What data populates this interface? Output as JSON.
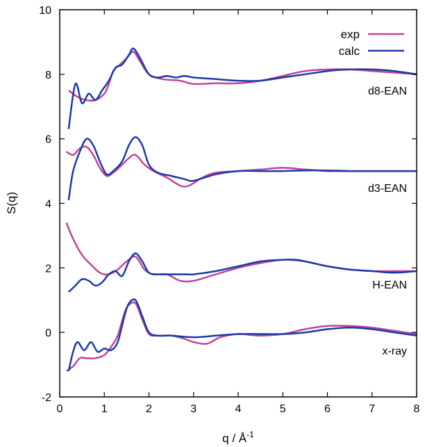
{
  "chart_data": {
    "type": "line",
    "title": "",
    "xlabel": "q / Å",
    "xlabel_sup": "-1",
    "ylabel": "S(q)",
    "xlim": [
      0,
      8
    ],
    "ylim": [
      -2,
      10
    ],
    "xticks": [
      "0",
      "1",
      "2",
      "3",
      "4",
      "5",
      "6",
      "7",
      "8"
    ],
    "yticks": [
      "-2",
      "0",
      "2",
      "4",
      "6",
      "8",
      "10"
    ],
    "grid": false,
    "legend_position": "top-right",
    "legend": [
      {
        "name": "exp",
        "color": "#c0449a"
      },
      {
        "name": "calc",
        "color": "#1a3aa8"
      }
    ],
    "annotations": [
      "d8-EAN",
      "d3-EAN",
      "H-EAN",
      "x-ray"
    ],
    "series": [
      {
        "dataset": "d8-EAN",
        "kind": "exp",
        "x": [
          0.2,
          0.4,
          0.6,
          0.8,
          1.0,
          1.1,
          1.2,
          1.35,
          1.5,
          1.65,
          1.8,
          2.0,
          2.3,
          2.7,
          3.0,
          3.5,
          4.0,
          4.5,
          5.0,
          5.5,
          6.0,
          6.5,
          7.0,
          7.5,
          8.0
        ],
        "y": [
          7.5,
          7.3,
          7.2,
          7.2,
          7.4,
          7.7,
          8.1,
          8.3,
          8.5,
          8.7,
          8.4,
          8.0,
          7.85,
          7.8,
          7.7,
          7.72,
          7.72,
          7.8,
          7.95,
          8.1,
          8.15,
          8.15,
          8.1,
          8.05,
          8.0
        ]
      },
      {
        "dataset": "d8-EAN",
        "kind": "calc",
        "x": [
          0.2,
          0.35,
          0.5,
          0.65,
          0.8,
          0.95,
          1.1,
          1.25,
          1.4,
          1.55,
          1.65,
          1.8,
          2.0,
          2.2,
          2.4,
          2.6,
          2.8,
          3.0,
          3.5,
          4.0,
          4.5,
          5.0,
          5.5,
          6.0,
          6.5,
          7.0,
          7.5,
          8.0
        ],
        "y": [
          6.3,
          7.7,
          7.1,
          7.4,
          7.2,
          7.5,
          7.8,
          8.2,
          8.3,
          8.6,
          8.8,
          8.5,
          8.0,
          7.9,
          7.95,
          7.9,
          7.95,
          7.9,
          7.85,
          7.8,
          7.8,
          7.9,
          8.0,
          8.1,
          8.15,
          8.15,
          8.1,
          8.0
        ]
      },
      {
        "dataset": "d3-EAN",
        "kind": "exp",
        "x": [
          0.15,
          0.3,
          0.45,
          0.6,
          0.75,
          0.9,
          1.05,
          1.2,
          1.4,
          1.55,
          1.7,
          1.9,
          2.1,
          2.4,
          2.7,
          2.9,
          3.2,
          3.5,
          4.0,
          4.5,
          5.0,
          5.5,
          6.0,
          6.5,
          7.0,
          7.5,
          8.0
        ],
        "y": [
          5.6,
          5.5,
          5.7,
          5.75,
          5.5,
          5.1,
          4.85,
          4.95,
          5.2,
          5.4,
          5.5,
          5.2,
          5.0,
          4.8,
          4.55,
          4.55,
          4.8,
          4.95,
          5.0,
          5.05,
          5.1,
          5.05,
          5.0,
          5.0,
          5.0,
          5.0,
          5.0
        ]
      },
      {
        "dataset": "d3-EAN",
        "kind": "calc",
        "x": [
          0.2,
          0.3,
          0.45,
          0.6,
          0.75,
          0.9,
          1.05,
          1.2,
          1.4,
          1.55,
          1.7,
          1.85,
          2.0,
          2.2,
          2.5,
          2.8,
          3.0,
          3.5,
          4.0,
          4.5,
          5.0,
          5.5,
          6.0,
          6.5,
          7.0,
          7.5,
          8.0
        ],
        "y": [
          4.1,
          5.0,
          5.6,
          6.0,
          5.8,
          5.3,
          4.9,
          5.0,
          5.3,
          5.8,
          6.05,
          5.8,
          5.2,
          4.95,
          4.85,
          4.75,
          4.7,
          4.9,
          5.0,
          5.0,
          5.0,
          5.02,
          5.02,
          5.0,
          5.0,
          5.0,
          5.0
        ]
      },
      {
        "dataset": "H-EAN",
        "kind": "exp",
        "x": [
          0.15,
          0.3,
          0.5,
          0.7,
          0.9,
          1.1,
          1.3,
          1.5,
          1.7,
          1.9,
          2.1,
          2.4,
          2.7,
          3.0,
          3.5,
          4.0,
          4.5,
          5.0,
          5.5,
          6.0,
          6.5,
          7.0,
          7.5,
          8.0
        ],
        "y": [
          3.4,
          2.9,
          2.4,
          2.1,
          1.85,
          1.8,
          1.95,
          2.2,
          2.35,
          1.95,
          1.8,
          1.8,
          1.6,
          1.6,
          1.8,
          2.0,
          2.15,
          2.25,
          2.2,
          2.05,
          1.95,
          1.9,
          1.9,
          1.9
        ]
      },
      {
        "dataset": "H-EAN",
        "kind": "calc",
        "x": [
          0.2,
          0.35,
          0.5,
          0.65,
          0.8,
          0.95,
          1.1,
          1.25,
          1.4,
          1.55,
          1.7,
          1.85,
          2.0,
          2.2,
          2.5,
          2.8,
          3.0,
          3.5,
          4.0,
          4.5,
          5.0,
          5.3,
          5.5,
          6.0,
          6.5,
          7.0,
          7.5,
          8.0
        ],
        "y": [
          1.25,
          1.45,
          1.65,
          1.6,
          1.45,
          1.55,
          1.8,
          1.9,
          1.75,
          2.2,
          2.45,
          2.2,
          1.85,
          1.8,
          1.8,
          1.8,
          1.8,
          1.9,
          2.05,
          2.2,
          2.25,
          2.25,
          2.2,
          2.05,
          1.95,
          1.9,
          1.85,
          1.9
        ]
      },
      {
        "dataset": "x-ray",
        "kind": "exp",
        "x": [
          0.15,
          0.3,
          0.45,
          0.6,
          0.8,
          1.0,
          1.15,
          1.3,
          1.45,
          1.55,
          1.7,
          1.85,
          2.0,
          2.2,
          2.5,
          2.8,
          3.0,
          3.3,
          3.6,
          4.0,
          4.5,
          5.0,
          5.5,
          6.0,
          6.5,
          7.0,
          7.5,
          8.0
        ],
        "y": [
          -1.2,
          -1.05,
          -0.8,
          -0.8,
          -0.8,
          -0.7,
          -0.45,
          -0.1,
          0.6,
          0.85,
          0.9,
          0.4,
          -0.05,
          -0.1,
          -0.1,
          -0.2,
          -0.3,
          -0.35,
          -0.15,
          -0.05,
          -0.1,
          -0.05,
          0.1,
          0.2,
          0.2,
          0.15,
          0.05,
          -0.05
        ]
      },
      {
        "dataset": "x-ray",
        "kind": "calc",
        "x": [
          0.2,
          0.3,
          0.4,
          0.55,
          0.7,
          0.85,
          1.0,
          1.15,
          1.3,
          1.45,
          1.55,
          1.7,
          1.85,
          2.0,
          2.2,
          2.5,
          3.0,
          3.5,
          4.0,
          4.5,
          5.0,
          5.5,
          6.0,
          6.5,
          7.0,
          7.5,
          8.0
        ],
        "y": [
          -1.2,
          -0.6,
          -0.3,
          -0.55,
          -0.3,
          -0.6,
          -0.5,
          -0.55,
          -0.3,
          0.5,
          0.9,
          1.0,
          0.5,
          0.0,
          -0.1,
          -0.1,
          -0.15,
          -0.1,
          -0.05,
          -0.05,
          -0.05,
          0.0,
          0.1,
          0.15,
          0.1,
          0.0,
          -0.1
        ]
      }
    ]
  }
}
